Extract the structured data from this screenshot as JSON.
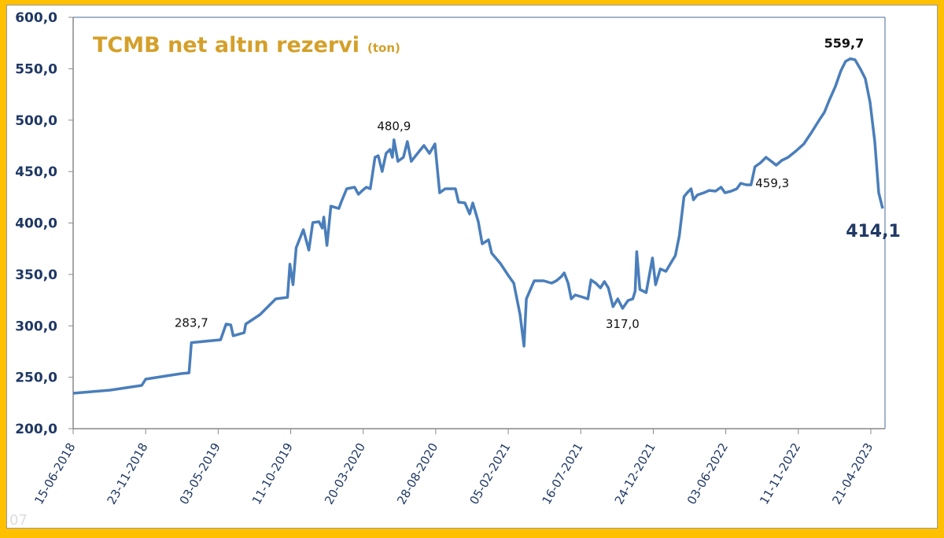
{
  "chart_data": {
    "type": "line",
    "title": "TCMB net altın rezervi",
    "title_unit": "(ton)",
    "xlabel": "",
    "ylabel": "",
    "x_unit": "weeks since 15-06-2018",
    "ylim": [
      200,
      600
    ],
    "xlim": [
      0,
      257.5
    ],
    "yticks": [
      "200,0",
      "250,0",
      "300,0",
      "350,0",
      "400,0",
      "450,0",
      "500,0",
      "550,0",
      "600,0"
    ],
    "ytick_values": [
      200,
      250,
      300,
      350,
      400,
      450,
      500,
      550,
      600
    ],
    "xticks": [
      "15-06-2018",
      "23-11-2018",
      "03-05-2019",
      "11-10-2019",
      "20-03-2020",
      "28-08-2020",
      "05-02-2021",
      "16-07-2021",
      "24-12-2021",
      "03-06-2022",
      "11-11-2022",
      "21-04-2023"
    ],
    "xtick_weeks": [
      0,
      23,
      46,
      69,
      92,
      115,
      138,
      161,
      184,
      207,
      230,
      253
    ],
    "grid": false,
    "line_color": "#4A7EBB",
    "series": [
      {
        "name": "TCMB net altın rezervi",
        "points": [
          [
            0,
            234.4
          ],
          [
            11.75,
            237.5
          ],
          [
            21.75,
            242.1
          ],
          [
            23,
            248.2
          ],
          [
            34.25,
            253.5
          ],
          [
            36.75,
            254.3
          ],
          [
            37.5,
            283.7
          ],
          [
            46.75,
            286.4
          ],
          [
            48.5,
            301.7
          ],
          [
            50,
            300.9
          ],
          [
            50.75,
            290.3
          ],
          [
            54.25,
            293.3
          ],
          [
            54.75,
            301.7
          ],
          [
            59.25,
            310.9
          ],
          [
            63,
            322.4
          ],
          [
            64.25,
            326.2
          ],
          [
            68,
            327.7
          ],
          [
            68.75,
            359.9
          ],
          [
            69.75,
            340
          ],
          [
            70.75,
            375.9
          ],
          [
            73,
            393.5
          ],
          [
            74.75,
            373.6
          ],
          [
            76,
            400.4
          ],
          [
            78,
            401.2
          ],
          [
            79,
            395
          ],
          [
            79.5,
            405.7
          ],
          [
            80.5,
            378.2
          ],
          [
            81.75,
            416.4
          ],
          [
            84.25,
            414.1
          ],
          [
            85,
            420.3
          ],
          [
            86.75,
            433.3
          ],
          [
            89.25,
            434.8
          ],
          [
            90.5,
            427.9
          ],
          [
            91.75,
            431.7
          ],
          [
            93,
            434.8
          ],
          [
            94.25,
            433.3
          ],
          [
            95.75,
            463.9
          ],
          [
            96.75,
            465.4
          ],
          [
            98,
            450.1
          ],
          [
            99.25,
            467.7
          ],
          [
            100.5,
            471.5
          ],
          [
            101.25,
            463.9
          ],
          [
            101.75,
            480.9
          ],
          [
            103,
            460
          ],
          [
            104.75,
            463.9
          ],
          [
            106,
            479.2
          ],
          [
            107.25,
            460
          ],
          [
            109.25,
            467.7
          ],
          [
            111.25,
            475.3
          ],
          [
            113,
            467.7
          ],
          [
            114.75,
            476.9
          ],
          [
            116.25,
            429.4
          ],
          [
            118,
            433.3
          ],
          [
            119.75,
            433.3
          ],
          [
            121.25,
            433.3
          ],
          [
            122.25,
            420.3
          ],
          [
            124.25,
            419.5
          ],
          [
            125.75,
            408.8
          ],
          [
            126.75,
            419.5
          ],
          [
            128.5,
            401.2
          ],
          [
            129.75,
            379.7
          ],
          [
            131.75,
            383.6
          ],
          [
            132.75,
            370.6
          ],
          [
            135.5,
            360.6
          ],
          [
            138,
            349.1
          ],
          [
            139.75,
            341.5
          ],
          [
            141.75,
            310.9
          ],
          [
            143,
            280.3
          ],
          [
            143.75,
            326.2
          ],
          [
            146.25,
            343.8
          ],
          [
            149.25,
            343.8
          ],
          [
            151.75,
            341.5
          ],
          [
            153.25,
            343.8
          ],
          [
            154.75,
            347.6
          ],
          [
            155.75,
            351.4
          ],
          [
            157,
            341.5
          ],
          [
            158,
            326.2
          ],
          [
            159.25,
            330
          ],
          [
            161.75,
            327.7
          ],
          [
            163.25,
            326.2
          ],
          [
            164.25,
            344.6
          ],
          [
            165.75,
            341.5
          ],
          [
            167.25,
            336.9
          ],
          [
            168.5,
            343
          ],
          [
            169.75,
            336.9
          ],
          [
            171.25,
            318.6
          ],
          [
            172.75,
            326.2
          ],
          [
            174.25,
            317
          ],
          [
            176,
            324.7
          ],
          [
            177.5,
            326.2
          ],
          [
            178.25,
            333.8
          ],
          [
            178.75,
            372.1
          ],
          [
            179.75,
            335.4
          ],
          [
            181.75,
            332.3
          ],
          [
            183.75,
            366
          ],
          [
            184.75,
            340
          ],
          [
            186.25,
            355.3
          ],
          [
            188,
            353
          ],
          [
            189.75,
            362.1
          ],
          [
            191,
            368.3
          ],
          [
            192.25,
            387.4
          ],
          [
            193.75,
            425.6
          ],
          [
            194.75,
            429.4
          ],
          [
            196,
            433.3
          ],
          [
            196.75,
            422.6
          ],
          [
            198,
            427.2
          ],
          [
            200,
            429.4
          ],
          [
            201.75,
            431.7
          ],
          [
            203.75,
            431
          ],
          [
            205.5,
            434.8
          ],
          [
            206.75,
            429.4
          ],
          [
            208.75,
            431
          ],
          [
            210.5,
            433.3
          ],
          [
            211.75,
            438.6
          ],
          [
            213.5,
            437.1
          ],
          [
            215,
            437.1
          ],
          [
            216.25,
            454.7
          ],
          [
            218,
            458.5
          ],
          [
            219.75,
            463.9
          ],
          [
            221.75,
            459.3
          ],
          [
            223,
            456.2
          ],
          [
            224.75,
            460.8
          ],
          [
            226.75,
            463.9
          ],
          [
            229.25,
            470
          ],
          [
            231.75,
            476.9
          ],
          [
            234.25,
            488.3
          ],
          [
            236.75,
            500.6
          ],
          [
            238.25,
            507.5
          ],
          [
            239.75,
            518.9
          ],
          [
            241.75,
            532.7
          ],
          [
            243.5,
            548
          ],
          [
            245,
            557.2
          ],
          [
            246.5,
            559.7
          ],
          [
            248,
            558.7
          ],
          [
            249.75,
            549.5
          ],
          [
            251.25,
            540.3
          ],
          [
            252.75,
            517.4
          ],
          [
            254.25,
            479.2
          ],
          [
            255.5,
            429.4
          ],
          [
            256.75,
            414.1
          ]
        ]
      }
    ],
    "annotations": [
      {
        "text": "283,7",
        "week": 37.5,
        "value": 283.7,
        "style": "ann"
      },
      {
        "text": "480,9",
        "week": 101.75,
        "value": 480.9,
        "style": "ann"
      },
      {
        "text": "317,0",
        "week": 174.25,
        "value": 317.0,
        "style": "ann"
      },
      {
        "text": "459,3",
        "week": 221.75,
        "value": 459.3,
        "style": "ann"
      },
      {
        "text": "559,7",
        "week": 246.5,
        "value": 559.7,
        "style": "ann-peak"
      },
      {
        "text": "414,1",
        "week": 256.75,
        "value": 414.1,
        "style": "ann-last"
      }
    ],
    "watermark": "07"
  }
}
